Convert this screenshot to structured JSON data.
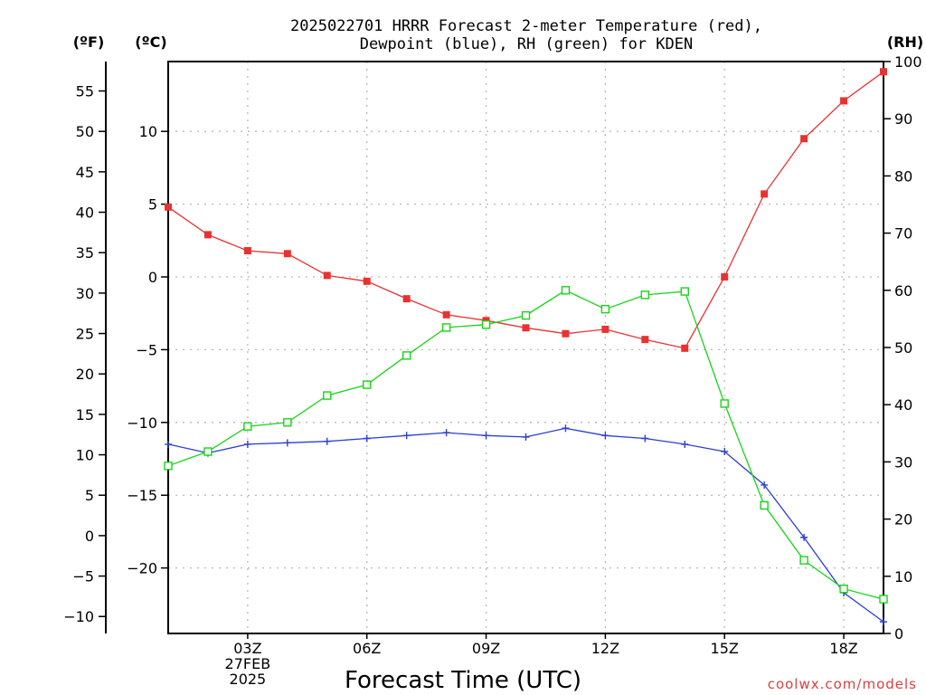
{
  "chart_data": {
    "type": "line",
    "title": [
      "2025022701 HRRR Forecast 2-meter Temperature (red),",
      "Dewpoint (blue), RH (green) for KDEN"
    ],
    "xlabel": "Forecast Time (UTC)",
    "x": [
      1,
      2,
      3,
      4,
      5,
      6,
      7,
      8,
      9,
      10,
      11,
      12,
      13,
      14,
      15,
      16,
      17,
      18,
      19
    ],
    "xlim": [
      1,
      19
    ],
    "x_ticks": [
      {
        "x": 3,
        "lines": [
          "03Z",
          "27FEB",
          "2025"
        ]
      },
      {
        "x": 6,
        "lines": [
          "06Z"
        ]
      },
      {
        "x": 9,
        "lines": [
          "09Z"
        ]
      },
      {
        "x": 12,
        "lines": [
          "12Z"
        ]
      },
      {
        "x": 15,
        "lines": [
          "15Z"
        ]
      },
      {
        "x": 18,
        "lines": [
          "18Z"
        ]
      }
    ],
    "axes": {
      "celsius": {
        "label": "(ºC)",
        "ticks": [
          10,
          5,
          0,
          -5,
          -10,
          -15,
          -20
        ],
        "ylim": [
          -24.5,
          14.8
        ]
      },
      "fahrenheit": {
        "label": "(ºF)",
        "ticks": [
          55,
          50,
          45,
          40,
          35,
          30,
          25,
          20,
          15,
          10,
          5,
          0,
          -5,
          -10
        ]
      },
      "rh": {
        "label": "(RH)",
        "ticks": [
          100,
          90,
          80,
          70,
          60,
          50,
          40,
          30,
          20,
          10,
          0
        ],
        "ylim": [
          0,
          100
        ]
      }
    },
    "grid": true,
    "series": [
      {
        "key": "temperature",
        "axis": "celsius",
        "color": "#e83232",
        "marker": "filled-square",
        "values": [
          4.8,
          2.9,
          1.8,
          1.6,
          0.1,
          -0.3,
          -1.5,
          -2.6,
          -3.0,
          -3.5,
          -3.9,
          -3.6,
          -4.3,
          -4.9,
          0.0,
          5.7,
          9.5,
          12.1,
          14.1
        ]
      },
      {
        "key": "dewpoint",
        "axis": "celsius",
        "color": "#2b3ed8",
        "marker": "plus",
        "values": [
          -11.5,
          -12.1,
          -11.5,
          -11.4,
          -11.3,
          -11.1,
          -10.9,
          -10.7,
          -10.9,
          -11.0,
          -10.4,
          -10.9,
          -11.1,
          -11.5,
          -12.0,
          -14.3,
          -17.9,
          -21.7,
          -23.7
        ]
      },
      {
        "key": "rh",
        "axis": "rh",
        "color": "#18d418",
        "marker": "open-square",
        "values": [
          29.3,
          31.8,
          36.2,
          36.9,
          41.6,
          43.5,
          48.6,
          53.5,
          54.0,
          55.6,
          60.0,
          56.7,
          59.2,
          59.8,
          40.2,
          22.4,
          12.8,
          7.8,
          6.0
        ]
      }
    ]
  },
  "credit": "coolwx.com/models"
}
